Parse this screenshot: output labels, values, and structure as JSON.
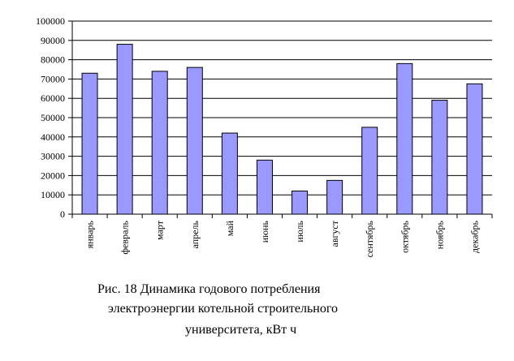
{
  "chart_data": {
    "type": "bar",
    "categories": [
      "январь",
      "февраль",
      "март",
      "апрель",
      "май",
      "июнь",
      "июль",
      "август",
      "сентябрь",
      "октябрь",
      "ноябрь",
      "декабрь"
    ],
    "values": [
      73000,
      88000,
      74000,
      76000,
      42000,
      28000,
      12000,
      17500,
      45000,
      78000,
      59000,
      67500
    ],
    "yticks": [
      "0",
      "10000",
      "20000",
      "30000",
      "40000",
      "50000",
      "60000",
      "70000",
      "80000",
      "90000",
      "100000"
    ],
    "ylim": [
      0,
      100000
    ],
    "grid": true,
    "bar_color": "#9999ff",
    "caption": {
      "line1": "Рис. 18 Динамика годового потребления",
      "line2": "электроэнергии котельной строительного",
      "line3": "университета, кВт  ч"
    }
  }
}
